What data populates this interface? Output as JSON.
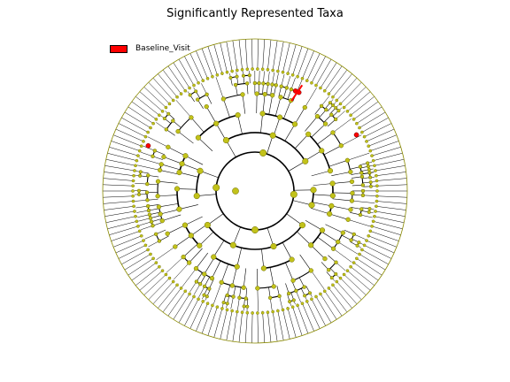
{
  "figure": {
    "title": "Significantly Represented Taxa"
  },
  "legend": {
    "entries": [
      {
        "label": "Baseline_Visit",
        "color": "#ff0000"
      }
    ]
  },
  "colors": {
    "node_default": "#c2c21a",
    "node_stroke": "#6b6b00",
    "node_highlight": "#ff0000",
    "leaf_line": "#000000",
    "outer_ring": "#8a8a00"
  },
  "cladogram": {
    "leaf_count": 150,
    "highlighted_taxa": [
      {
        "group": "Baseline_Visit",
        "angle_deg": 292,
        "level": 5
      },
      {
        "group": "Baseline_Visit",
        "angle_deg": 294,
        "level": 5
      },
      {
        "group": "Baseline_Visit",
        "angle_deg": 331,
        "level": 6
      },
      {
        "group": "Baseline_Visit",
        "angle_deg": 203,
        "level": 6
      }
    ]
  }
}
